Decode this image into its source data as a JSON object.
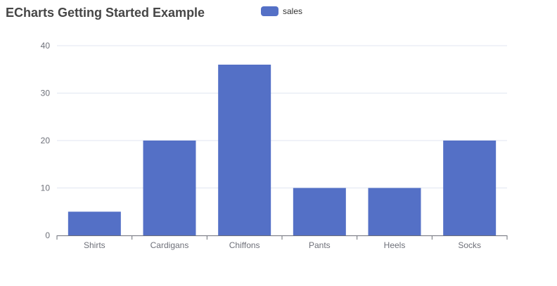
{
  "header": {
    "title": "ECharts Getting Started Example"
  },
  "chart_data": {
    "type": "bar",
    "title": "ECharts Getting Started Example",
    "categories": [
      "Shirts",
      "Cardigans",
      "Chiffons",
      "Pants",
      "Heels",
      "Socks"
    ],
    "series": [
      {
        "name": "sales",
        "values": [
          5,
          20,
          36,
          10,
          10,
          20
        ],
        "color": "#5470c6"
      }
    ],
    "xlabel": "",
    "ylabel": "",
    "ylim": [
      0,
      40
    ],
    "yticks": [
      0,
      10,
      20,
      30,
      40
    ],
    "grid": true,
    "legend": {
      "entries": [
        "sales"
      ],
      "position": "top-center"
    }
  },
  "colors": {
    "bar": "#5470c6",
    "title_text": "#464646",
    "legend_text": "#333333",
    "axis_label": "#6e7079",
    "axis_line": "#6e7079",
    "grid_line": "#e0e6f1",
    "background": "#ffffff"
  }
}
